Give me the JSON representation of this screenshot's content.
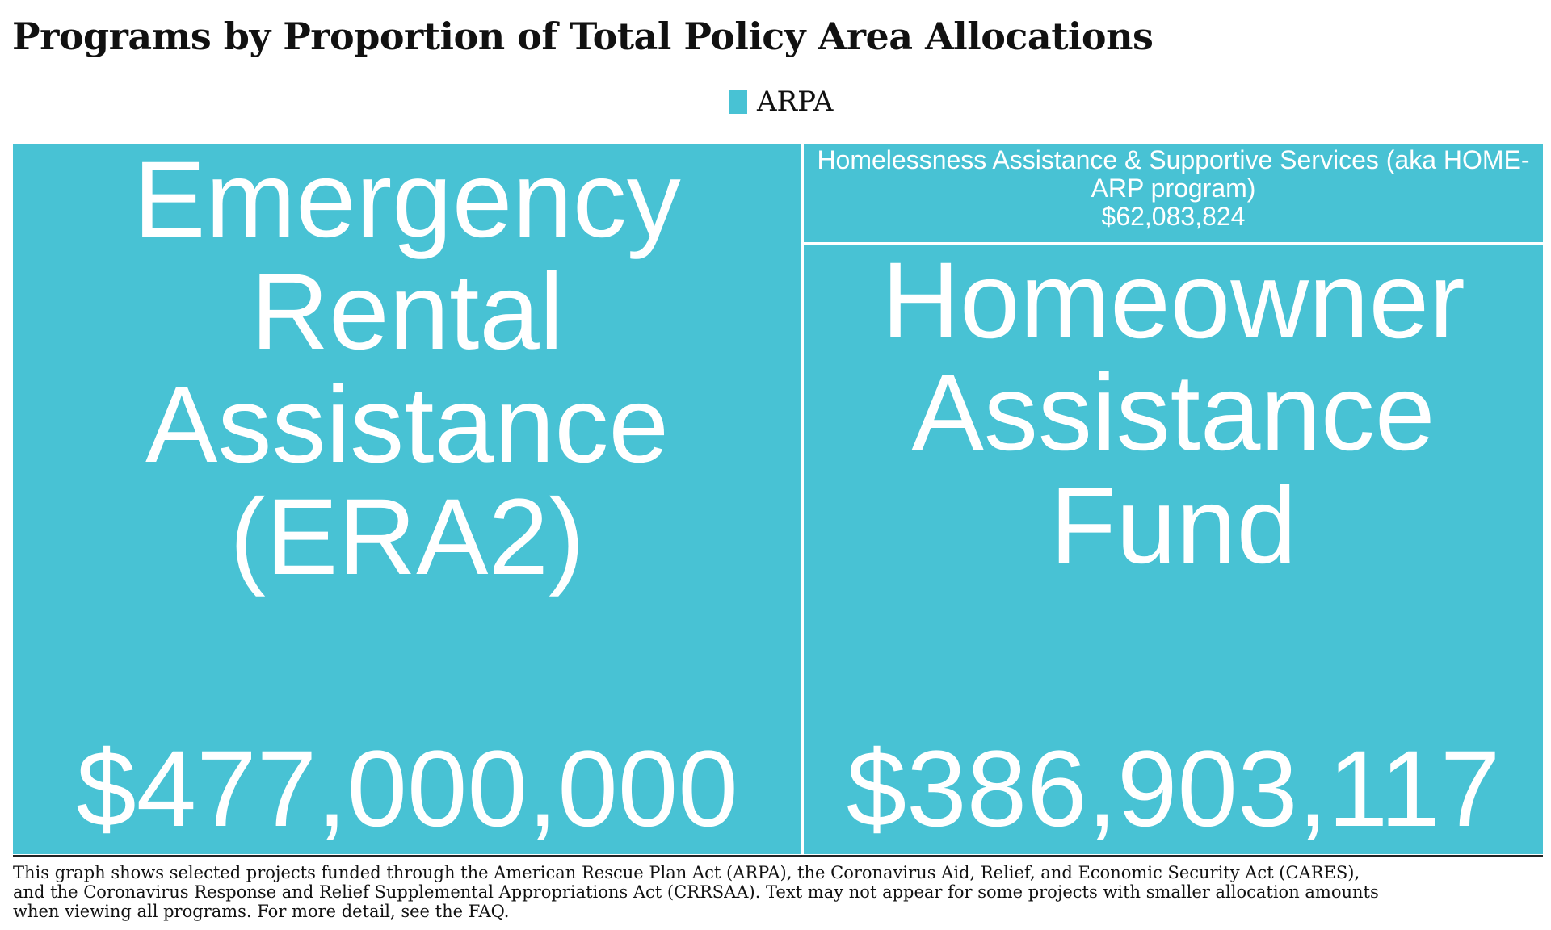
{
  "title": "Programs by Proportion of Total Policy Area Allocations",
  "legend": {
    "label": "ARPA",
    "color": "#48C2D4"
  },
  "chart_data": {
    "type": "treemap",
    "series": [
      {
        "name": "ARPA",
        "color": "#48C2D4"
      }
    ],
    "items": [
      {
        "name": "Emergency Rental Assistance (ERA2)",
        "value": 477000000,
        "label": "$477,000,000"
      },
      {
        "name": "Homeowner Assistance Fund",
        "value": 386903117,
        "label": "$386,903,117"
      },
      {
        "name": "Homelessness Assistance & Supportive Services (aka HOME-ARP program)",
        "value": 62083824,
        "label": "$62,083,824"
      }
    ]
  },
  "footnote": "This graph shows selected projects funded through the American Rescue Plan Act (ARPA), the Coronavirus Aid, Relief, and Economic Security Act (CARES),\nand the Coronavirus Response and Relief Supplemental Appropriations Act (CRRSAA). Text may not appear for some projects with smaller allocation amounts\n when viewing all programs. For more detail, see the FAQ."
}
